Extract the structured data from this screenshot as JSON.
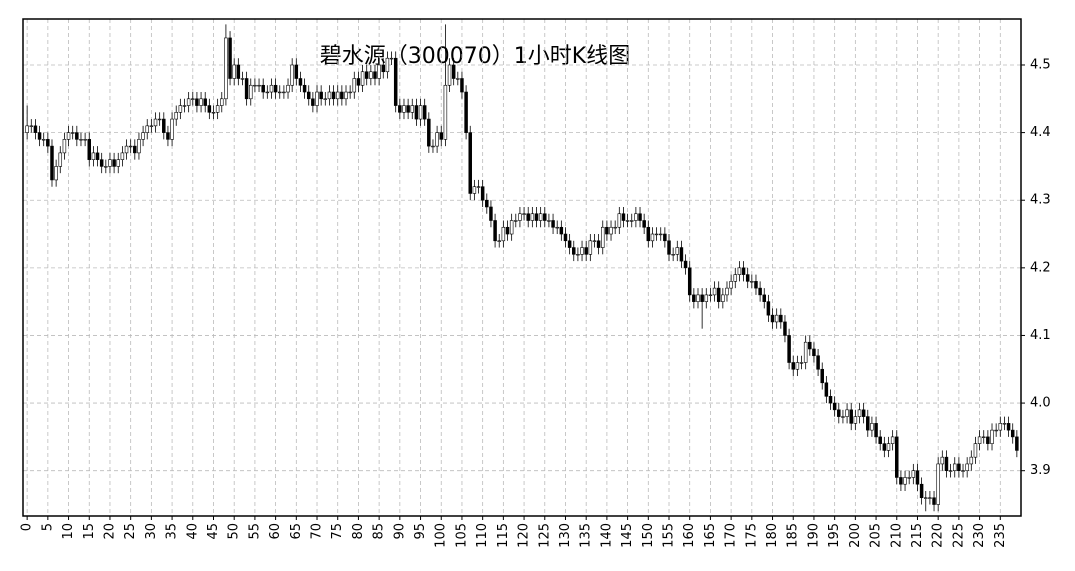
{
  "chart_data": {
    "type": "candlestick",
    "title": "碧水源（300070）1小时K线图",
    "xlim": [
      -1,
      240
    ],
    "ylim": [
      3.833,
      4.568
    ],
    "xticks": [
      0,
      5,
      10,
      15,
      20,
      25,
      30,
      35,
      40,
      45,
      50,
      55,
      60,
      65,
      70,
      75,
      80,
      85,
      90,
      95,
      100,
      105,
      110,
      115,
      120,
      125,
      130,
      135,
      140,
      145,
      150,
      155,
      160,
      165,
      170,
      175,
      180,
      185,
      190,
      195,
      200,
      205,
      210,
      215,
      220,
      225,
      230,
      235
    ],
    "yticks": [
      3.9,
      {
        "value": 4,
        "label": "4.0"
      },
      4.1,
      4.2,
      4.3,
      4.4,
      4.5
    ],
    "grid": true,
    "up_color": "#ffffff",
    "down_color": "#000000",
    "open": [
      4.4,
      4.41,
      4.41,
      4.4,
      4.39,
      4.39,
      4.38,
      4.33,
      4.35,
      4.37,
      4.39,
      4.4,
      4.4,
      4.39,
      4.39,
      4.39,
      4.36,
      4.37,
      4.36,
      4.35,
      4.35,
      4.36,
      4.35,
      4.36,
      4.37,
      4.38,
      4.38,
      4.37,
      4.39,
      4.4,
      4.41,
      4.41,
      4.42,
      4.42,
      4.4,
      4.39,
      4.42,
      4.43,
      4.44,
      4.44,
      4.45,
      4.45,
      4.44,
      4.45,
      4.44,
      4.43,
      4.43,
      4.44,
      4.45,
      4.54,
      4.48,
      4.5,
      4.48,
      4.48,
      4.45,
      4.47,
      4.47,
      4.47,
      4.46,
      4.46,
      4.47,
      4.46,
      4.46,
      4.46,
      4.47,
      4.5,
      4.48,
      4.47,
      4.46,
      4.45,
      4.44,
      4.46,
      4.45,
      4.45,
      4.46,
      4.45,
      4.46,
      4.45,
      4.46,
      4.46,
      4.48,
      4.47,
      4.49,
      4.48,
      4.49,
      4.48,
      4.5,
      4.49,
      4.51,
      4.51,
      4.44,
      4.43,
      4.44,
      4.43,
      4.44,
      4.42,
      4.44,
      4.42,
      4.38,
      4.38,
      4.4,
      4.39,
      4.47,
      4.5,
      4.48,
      4.48,
      4.46,
      4.4,
      4.31,
      4.32,
      4.32,
      4.3,
      4.29,
      4.27,
      4.24,
      4.24,
      4.26,
      4.25,
      4.27,
      4.27,
      4.28,
      4.28,
      4.27,
      4.28,
      4.27,
      4.28,
      4.27,
      4.27,
      4.26,
      4.26,
      4.25,
      4.24,
      4.23,
      4.22,
      4.22,
      4.23,
      4.22,
      4.24,
      4.24,
      4.23,
      4.26,
      4.25,
      4.26,
      4.26,
      4.28,
      4.27,
      4.27,
      4.27,
      4.28,
      4.27,
      4.26,
      4.24,
      4.25,
      4.25,
      4.25,
      4.24,
      4.22,
      4.22,
      4.23,
      4.21,
      4.2,
      4.16,
      4.15,
      4.16,
      4.15,
      4.16,
      4.16,
      4.17,
      4.15,
      4.16,
      4.17,
      4.18,
      4.19,
      4.2,
      4.19,
      4.18,
      4.18,
      4.17,
      4.16,
      4.15,
      4.13,
      4.12,
      4.13,
      4.12,
      4.1,
      4.06,
      4.05,
      4.06,
      4.06,
      4.09,
      4.08,
      4.07,
      4.05,
      4.03,
      4.01,
      4.0,
      3.99,
      3.98,
      3.98,
      3.99,
      3.97,
      3.98,
      3.99,
      3.98,
      3.96,
      3.97,
      3.95,
      3.94,
      3.93,
      3.94,
      3.95,
      3.89,
      3.88,
      3.89,
      3.89,
      3.9,
      3.88,
      3.86,
      3.86,
      3.86,
      3.85,
      3.91,
      3.92,
      3.9,
      3.9,
      3.91,
      3.9,
      3.9,
      3.91,
      3.92,
      3.94,
      3.95,
      3.95,
      3.94,
      3.96,
      3.96,
      3.97,
      3.97,
      3.96,
      3.95
    ],
    "high": [
      4.44,
      4.42,
      4.42,
      4.41,
      4.4,
      4.4,
      4.39,
      4.36,
      4.38,
      4.4,
      4.41,
      4.41,
      4.41,
      4.4,
      4.4,
      4.4,
      4.38,
      4.38,
      4.37,
      4.36,
      4.37,
      4.37,
      4.37,
      4.38,
      4.39,
      4.39,
      4.39,
      4.4,
      4.41,
      4.42,
      4.42,
      4.43,
      4.43,
      4.43,
      4.41,
      4.43,
      4.44,
      4.45,
      4.45,
      4.46,
      4.46,
      4.46,
      4.46,
      4.46,
      4.45,
      4.44,
      4.45,
      4.46,
      4.56,
      4.55,
      4.51,
      4.51,
      4.49,
      4.49,
      4.48,
      4.48,
      4.48,
      4.48,
      4.47,
      4.48,
      4.48,
      4.47,
      4.47,
      4.48,
      4.51,
      4.51,
      4.49,
      4.48,
      4.47,
      4.46,
      4.47,
      4.47,
      4.46,
      4.47,
      4.47,
      4.47,
      4.47,
      4.47,
      4.47,
      4.49,
      4.49,
      4.5,
      4.5,
      4.5,
      4.5,
      4.51,
      4.51,
      4.52,
      4.52,
      4.52,
      4.45,
      4.45,
      4.45,
      4.45,
      4.45,
      4.45,
      4.45,
      4.43,
      4.39,
      4.41,
      4.41,
      4.56,
      4.51,
      4.51,
      4.49,
      4.49,
      4.47,
      4.41,
      4.33,
      4.33,
      4.33,
      4.31,
      4.3,
      4.28,
      4.25,
      4.27,
      4.27,
      4.28,
      4.28,
      4.29,
      4.29,
      4.29,
      4.29,
      4.29,
      4.29,
      4.29,
      4.28,
      4.28,
      4.27,
      4.27,
      4.26,
      4.25,
      4.24,
      4.23,
      4.24,
      4.24,
      4.25,
      4.25,
      4.25,
      4.27,
      4.27,
      4.27,
      4.27,
      4.29,
      4.29,
      4.28,
      4.28,
      4.29,
      4.29,
      4.28,
      4.27,
      4.26,
      4.26,
      4.26,
      4.26,
      4.25,
      4.23,
      4.24,
      4.24,
      4.22,
      4.21,
      4.17,
      4.17,
      4.17,
      4.17,
      4.17,
      4.18,
      4.18,
      4.17,
      4.18,
      4.19,
      4.2,
      4.21,
      4.21,
      4.2,
      4.19,
      4.19,
      4.18,
      4.17,
      4.16,
      4.14,
      4.14,
      4.14,
      4.13,
      4.11,
      4.07,
      4.07,
      4.07,
      4.1,
      4.1,
      4.09,
      4.08,
      4.06,
      4.04,
      4.02,
      4.01,
      4.0,
      3.99,
      4.0,
      4.0,
      3.99,
      4.0,
      4.0,
      3.99,
      3.98,
      3.98,
      3.96,
      3.95,
      3.95,
      3.96,
      3.96,
      3.9,
      3.9,
      3.9,
      3.91,
      3.91,
      3.89,
      3.87,
      3.87,
      3.87,
      3.92,
      3.93,
      3.93,
      3.91,
      3.92,
      3.92,
      3.91,
      3.92,
      3.93,
      3.95,
      3.96,
      3.96,
      3.96,
      3.97,
      3.97,
      3.98,
      3.98,
      3.98,
      3.97,
      3.96
    ],
    "low": [
      4.39,
      4.4,
      4.39,
      4.38,
      4.38,
      4.37,
      4.32,
      4.32,
      4.34,
      4.36,
      4.38,
      4.39,
      4.38,
      4.38,
      4.38,
      4.35,
      4.35,
      4.35,
      4.34,
      4.34,
      4.34,
      4.34,
      4.34,
      4.35,
      4.36,
      4.37,
      4.36,
      4.36,
      4.38,
      4.39,
      4.4,
      4.4,
      4.41,
      4.39,
      4.38,
      4.38,
      4.41,
      4.42,
      4.43,
      4.43,
      4.44,
      4.43,
      4.43,
      4.43,
      4.42,
      4.42,
      4.42,
      4.43,
      4.44,
      4.47,
      4.47,
      4.47,
      4.47,
      4.44,
      4.44,
      4.46,
      4.46,
      4.45,
      4.45,
      4.45,
      4.45,
      4.45,
      4.45,
      4.45,
      4.46,
      4.47,
      4.46,
      4.45,
      4.44,
      4.43,
      4.43,
      4.44,
      4.44,
      4.44,
      4.44,
      4.44,
      4.44,
      4.44,
      4.45,
      4.45,
      4.46,
      4.46,
      4.47,
      4.47,
      4.47,
      4.47,
      4.48,
      4.48,
      4.5,
      4.43,
      4.42,
      4.42,
      4.42,
      4.42,
      4.41,
      4.41,
      4.41,
      4.37,
      4.37,
      4.37,
      4.38,
      4.38,
      4.46,
      4.47,
      4.47,
      4.45,
      4.39,
      4.3,
      4.3,
      4.31,
      4.29,
      4.28,
      4.26,
      4.23,
      4.23,
      4.23,
      4.24,
      4.24,
      4.26,
      4.26,
      4.27,
      4.26,
      4.26,
      4.26,
      4.26,
      4.26,
      4.26,
      4.25,
      4.25,
      4.24,
      4.23,
      4.22,
      4.21,
      4.21,
      4.21,
      4.21,
      4.21,
      4.23,
      4.22,
      4.22,
      4.24,
      4.24,
      4.25,
      4.25,
      4.26,
      4.26,
      4.26,
      4.26,
      4.26,
      4.25,
      4.23,
      4.23,
      4.24,
      4.24,
      4.23,
      4.21,
      4.21,
      4.21,
      4.2,
      4.19,
      4.15,
      4.14,
      4.14,
      4.11,
      4.14,
      4.15,
      4.15,
      4.14,
      4.14,
      4.15,
      4.16,
      4.17,
      4.18,
      4.18,
      4.17,
      4.17,
      4.16,
      4.15,
      4.14,
      4.12,
      4.11,
      4.11,
      4.11,
      4.09,
      4.05,
      4.04,
      4.04,
      4.05,
      4.05,
      4.07,
      4.06,
      4.04,
      4.02,
      4.0,
      3.99,
      3.98,
      3.97,
      3.97,
      3.97,
      3.96,
      3.96,
      3.97,
      3.97,
      3.95,
      3.95,
      3.94,
      3.93,
      3.92,
      3.92,
      3.93,
      3.88,
      3.87,
      3.87,
      3.88,
      3.88,
      3.87,
      3.85,
      3.84,
      3.85,
      3.84,
      3.84,
      3.9,
      3.89,
      3.89,
      3.89,
      3.89,
      3.89,
      3.89,
      3.9,
      3.91,
      3.93,
      3.94,
      3.93,
      3.93,
      3.95,
      3.95,
      3.96,
      3.95,
      3.94,
      3.92
    ],
    "close": [
      4.41,
      4.41,
      4.4,
      4.39,
      4.39,
      4.38,
      4.33,
      4.35,
      4.37,
      4.39,
      4.4,
      4.4,
      4.39,
      4.39,
      4.39,
      4.36,
      4.37,
      4.36,
      4.35,
      4.35,
      4.36,
      4.35,
      4.36,
      4.37,
      4.38,
      4.38,
      4.37,
      4.39,
      4.4,
      4.41,
      4.41,
      4.42,
      4.42,
      4.4,
      4.39,
      4.42,
      4.43,
      4.44,
      4.44,
      4.45,
      4.45,
      4.44,
      4.45,
      4.44,
      4.43,
      4.43,
      4.44,
      4.45,
      4.54,
      4.48,
      4.5,
      4.48,
      4.48,
      4.45,
      4.47,
      4.47,
      4.47,
      4.46,
      4.46,
      4.47,
      4.46,
      4.46,
      4.46,
      4.47,
      4.5,
      4.48,
      4.47,
      4.46,
      4.45,
      4.44,
      4.46,
      4.45,
      4.45,
      4.46,
      4.45,
      4.46,
      4.45,
      4.46,
      4.46,
      4.48,
      4.47,
      4.49,
      4.48,
      4.49,
      4.48,
      4.5,
      4.49,
      4.51,
      4.51,
      4.44,
      4.43,
      4.44,
      4.43,
      4.44,
      4.42,
      4.44,
      4.42,
      4.38,
      4.38,
      4.4,
      4.39,
      4.47,
      4.5,
      4.48,
      4.48,
      4.46,
      4.4,
      4.31,
      4.32,
      4.32,
      4.3,
      4.29,
      4.27,
      4.24,
      4.24,
      4.26,
      4.25,
      4.27,
      4.27,
      4.28,
      4.28,
      4.27,
      4.28,
      4.27,
      4.28,
      4.27,
      4.27,
      4.26,
      4.26,
      4.25,
      4.24,
      4.23,
      4.22,
      4.22,
      4.23,
      4.22,
      4.24,
      4.24,
      4.23,
      4.26,
      4.25,
      4.26,
      4.26,
      4.28,
      4.27,
      4.27,
      4.27,
      4.28,
      4.27,
      4.26,
      4.24,
      4.25,
      4.25,
      4.25,
      4.24,
      4.22,
      4.22,
      4.23,
      4.21,
      4.2,
      4.16,
      4.15,
      4.16,
      4.15,
      4.16,
      4.16,
      4.17,
      4.15,
      4.16,
      4.17,
      4.18,
      4.19,
      4.2,
      4.19,
      4.18,
      4.18,
      4.17,
      4.16,
      4.15,
      4.13,
      4.12,
      4.13,
      4.12,
      4.1,
      4.06,
      4.05,
      4.06,
      4.06,
      4.09,
      4.08,
      4.07,
      4.05,
      4.03,
      4.01,
      4.0,
      3.99,
      3.98,
      3.98,
      3.99,
      3.97,
      3.98,
      3.99,
      3.98,
      3.96,
      3.97,
      3.95,
      3.94,
      3.93,
      3.94,
      3.95,
      3.89,
      3.88,
      3.89,
      3.89,
      3.9,
      3.88,
      3.86,
      3.86,
      3.86,
      3.85,
      3.91,
      3.92,
      3.9,
      3.9,
      3.91,
      3.9,
      3.9,
      3.91,
      3.92,
      3.94,
      3.95,
      3.95,
      3.94,
      3.96,
      3.96,
      3.97,
      3.97,
      3.96,
      3.95,
      3.93
    ]
  }
}
